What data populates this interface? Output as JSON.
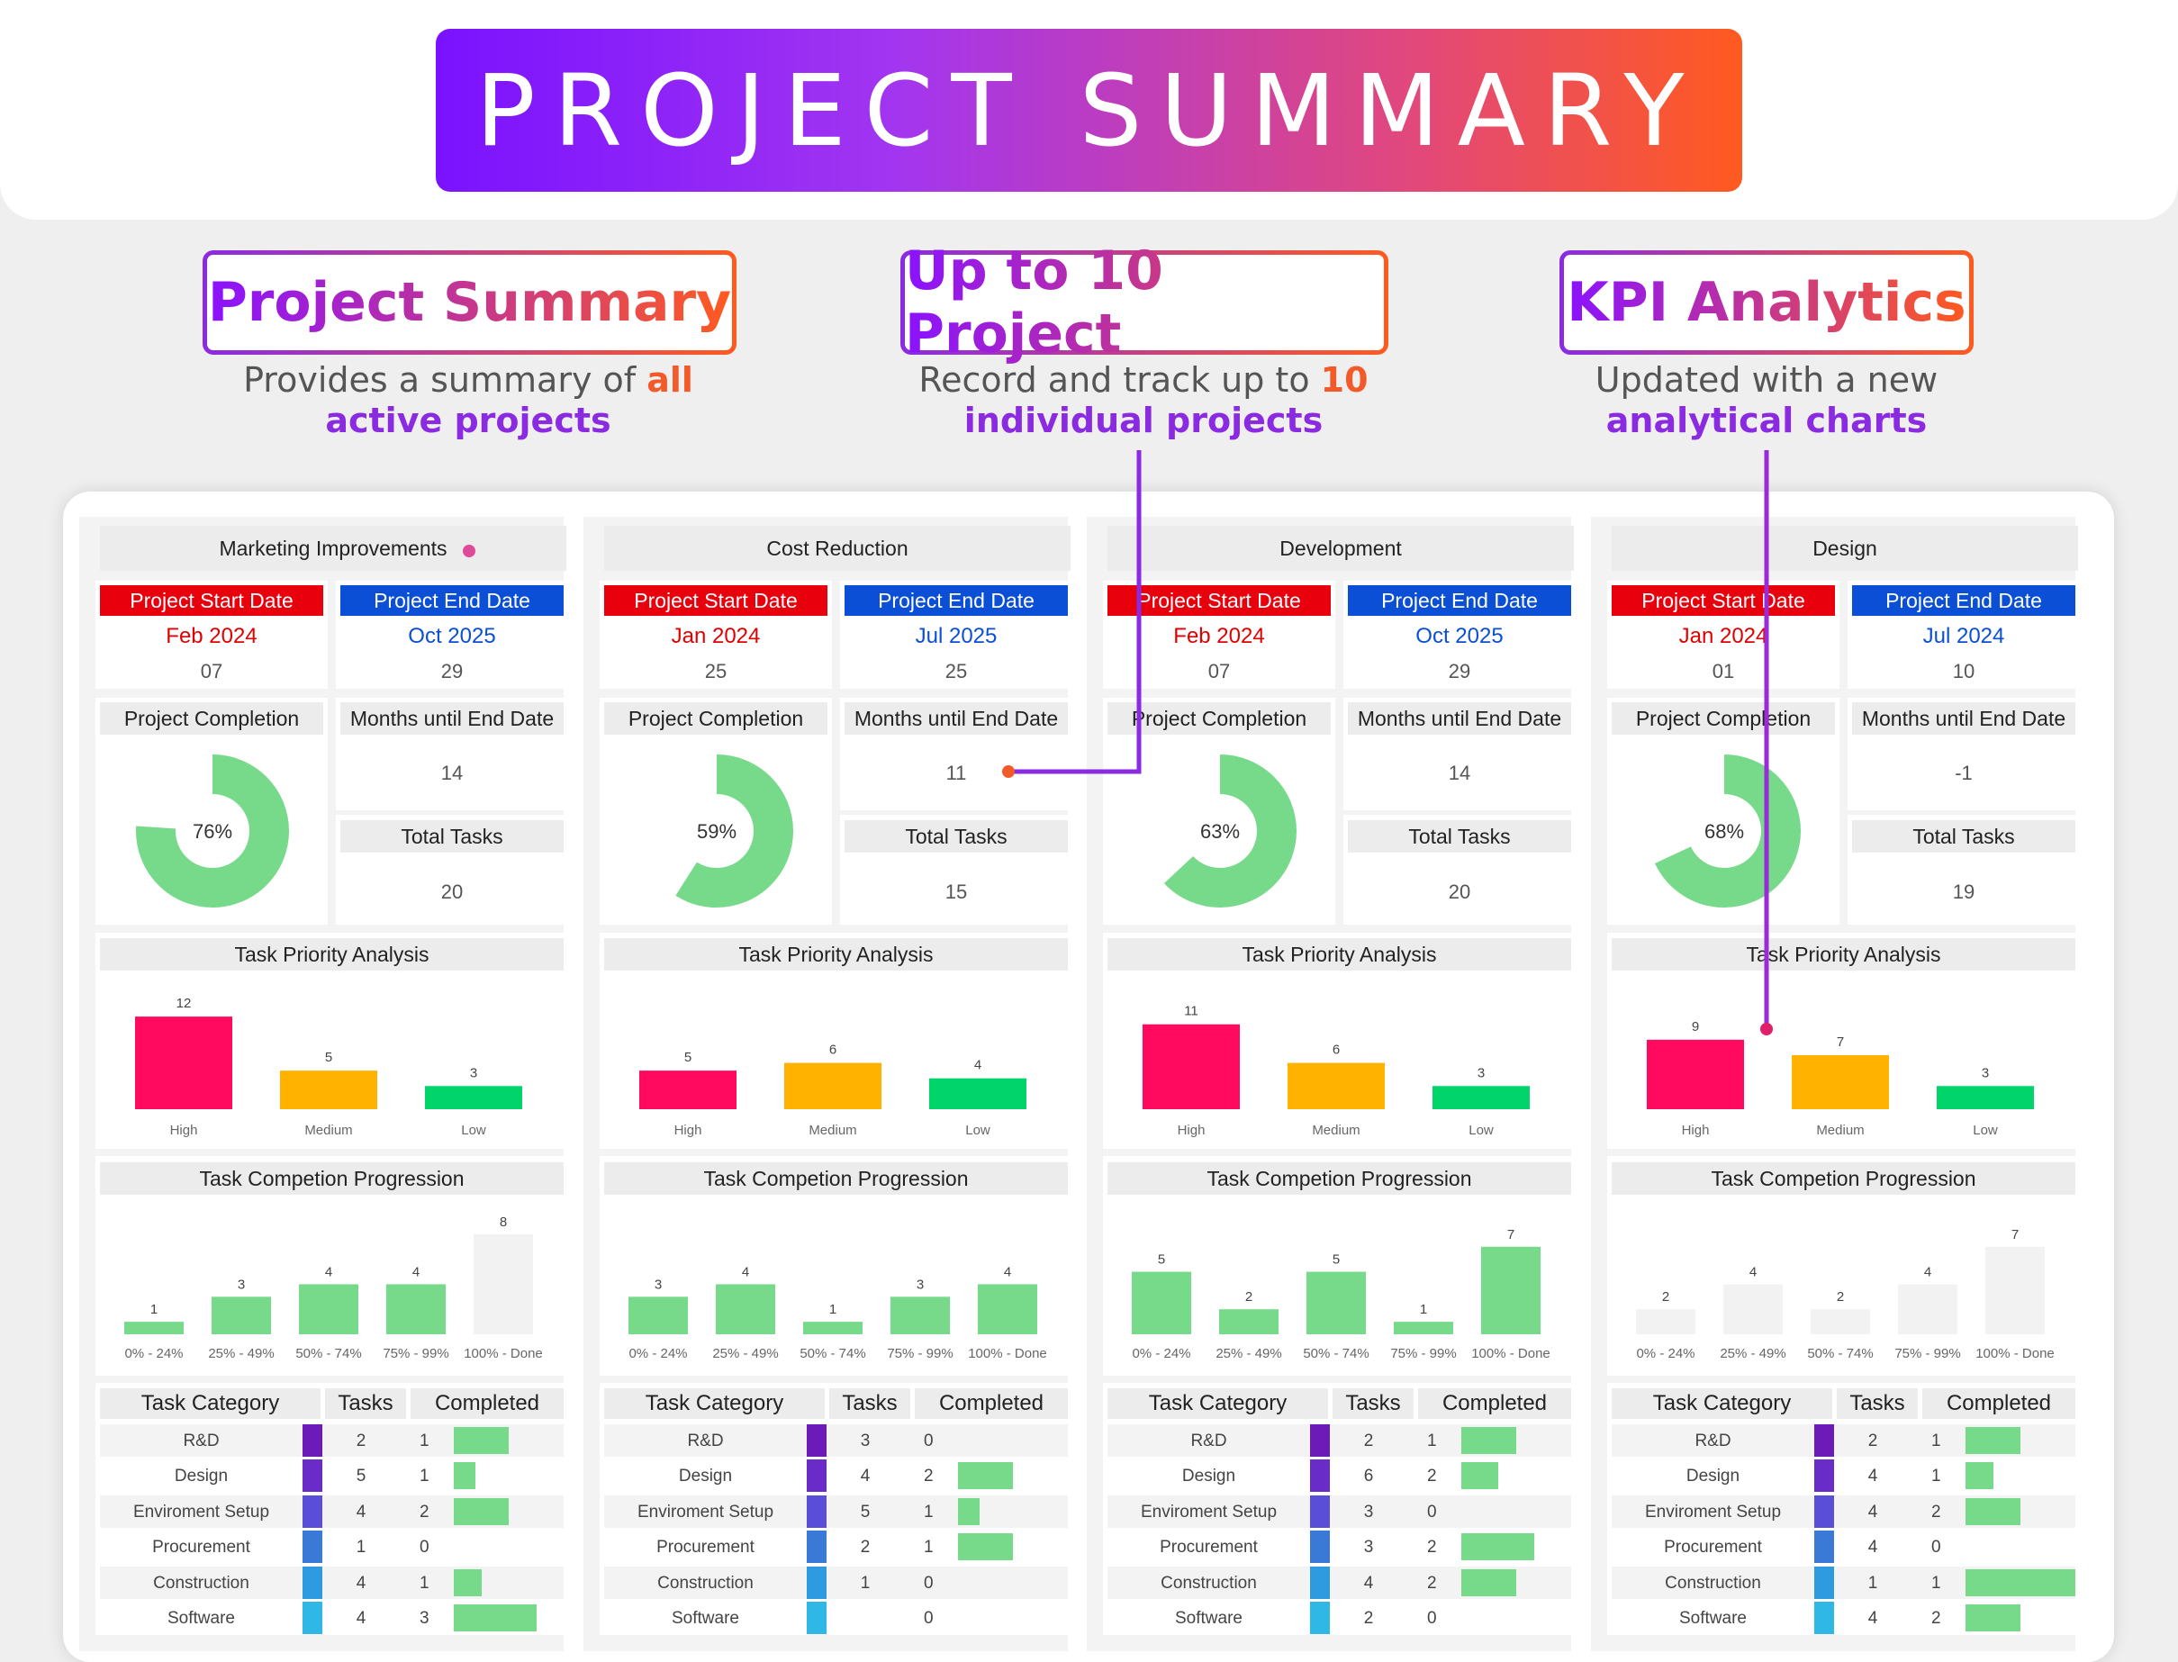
{
  "banner": {
    "title": "PROJECT SUMMARY"
  },
  "features": [
    {
      "title": "Project Summary",
      "desc_line1_a": "Provides a summary of ",
      "desc_line1_b": "all",
      "desc_line2": "active projects"
    },
    {
      "title": "Up to 10 Project",
      "desc_line1_a": "Record and track up to ",
      "desc_line1_b": "10",
      "desc_line2": "individual projects"
    },
    {
      "title": "KPI Analytics",
      "desc_line1_a": "Updated with a new",
      "desc_line1_b": "",
      "desc_line2": "analytical charts"
    }
  ],
  "labels": {
    "start": "Project Start Date",
    "end": "Project End Date",
    "completion": "Project Completion",
    "months": "Months until End Date",
    "total": "Total Tasks",
    "priority": "Task Priority Analysis",
    "progression": "Task Competion Progression",
    "cat": "Task Category",
    "tasks": "Tasks",
    "completed": "Completed"
  },
  "colors": {
    "start": "#e8000c",
    "end": "#0a4fd6",
    "start_text": "#e00000",
    "end_text": "#0a4fd6",
    "donut": "#77d98a",
    "high": "#ff0a5e",
    "medium": "#ffb300",
    "low": "#00d46a",
    "prog_fill": "#77d98a",
    "prog_empty": "#f2f2f2",
    "bar_done": "#77d98a"
  },
  "projects": [
    {
      "name": "Marketing Improvements",
      "start": "Feb 2024",
      "start_day": "07",
      "end": "Oct 2025",
      "end_day": "29",
      "completion": "76%",
      "completion_value": 76,
      "months": "14",
      "total": "20",
      "priority": {
        "categories": [
          "High",
          "Medium",
          "Low"
        ],
        "values": [
          12,
          5,
          3
        ]
      },
      "progression": {
        "categories": [
          "0% - 24%",
          "25% - 49%",
          "50% - 74%",
          "75% - 99%",
          "100% - Done"
        ],
        "values": [
          1,
          3,
          4,
          4,
          8
        ]
      },
      "rows": [
        {
          "cat": "R&D",
          "tasks": "2",
          "done": "1"
        },
        {
          "cat": "Design",
          "tasks": "5",
          "done": "1"
        },
        {
          "cat": "Enviroment Setup",
          "tasks": "4",
          "done": "2"
        },
        {
          "cat": "Procurement",
          "tasks": "1",
          "done": "0"
        },
        {
          "cat": "Construction",
          "tasks": "4",
          "done": "1"
        },
        {
          "cat": "Software",
          "tasks": "4",
          "done": "3"
        }
      ]
    },
    {
      "name": "Cost Reduction",
      "start": "Jan 2024",
      "start_day": "25",
      "end": "Jul 2025",
      "end_day": "25",
      "completion": "59%",
      "completion_value": 59,
      "months": "11",
      "total": "15",
      "priority": {
        "categories": [
          "High",
          "Medium",
          "Low"
        ],
        "values": [
          5,
          6,
          4
        ]
      },
      "progression": {
        "categories": [
          "0% - 24%",
          "25% - 49%",
          "50% - 74%",
          "75% - 99%",
          "100% - Done"
        ],
        "values": [
          3,
          4,
          1,
          3,
          4
        ]
      },
      "rows": [
        {
          "cat": "R&D",
          "tasks": "3",
          "done": "0"
        },
        {
          "cat": "Design",
          "tasks": "4",
          "done": "2"
        },
        {
          "cat": "Enviroment Setup",
          "tasks": "5",
          "done": "1"
        },
        {
          "cat": "Procurement",
          "tasks": "2",
          "done": "1"
        },
        {
          "cat": "Construction",
          "tasks": "1",
          "done": "0"
        },
        {
          "cat": "Software",
          "tasks": "",
          "done": "0"
        }
      ]
    },
    {
      "name": "Development",
      "start": "Feb 2024",
      "start_day": "07",
      "end": "Oct 2025",
      "end_day": "29",
      "completion": "63%",
      "completion_value": 63,
      "months": "14",
      "total": "20",
      "priority": {
        "categories": [
          "High",
          "Medium",
          "Low"
        ],
        "values": [
          11,
          6,
          3
        ]
      },
      "progression": {
        "categories": [
          "0% - 24%",
          "25% - 49%",
          "50% - 74%",
          "75% - 99%",
          "100% - Done"
        ],
        "values": [
          5,
          2,
          5,
          1,
          7
        ]
      },
      "rows": [
        {
          "cat": "R&D",
          "tasks": "2",
          "done": "1"
        },
        {
          "cat": "Design",
          "tasks": "6",
          "done": "2"
        },
        {
          "cat": "Enviroment Setup",
          "tasks": "3",
          "done": "0"
        },
        {
          "cat": "Procurement",
          "tasks": "3",
          "done": "2"
        },
        {
          "cat": "Construction",
          "tasks": "4",
          "done": "2"
        },
        {
          "cat": "Software",
          "tasks": "2",
          "done": "0"
        }
      ]
    },
    {
      "name": "Design",
      "start": "Jan 2024",
      "start_day": "01",
      "end": "Jul 2024",
      "end_day": "10",
      "completion": "68%",
      "completion_value": 68,
      "months": "-1",
      "total": "19",
      "priority": {
        "categories": [
          "High",
          "Medium",
          "Low"
        ],
        "values": [
          9,
          7,
          3
        ]
      },
      "progression": {
        "categories": [
          "0% - 24%",
          "25% - 49%",
          "50% - 74%",
          "75% - 99%",
          "100% - Done"
        ],
        "values": [
          2,
          4,
          2,
          4,
          7
        ]
      },
      "rows": [
        {
          "cat": "R&D",
          "tasks": "2",
          "done": "1"
        },
        {
          "cat": "Design",
          "tasks": "4",
          "done": "1"
        },
        {
          "cat": "Enviroment Setup",
          "tasks": "4",
          "done": "2"
        },
        {
          "cat": "Procurement",
          "tasks": "4",
          "done": "0"
        },
        {
          "cat": "Construction",
          "tasks": "1",
          "done": "1"
        },
        {
          "cat": "Software",
          "tasks": "4",
          "done": "2"
        }
      ]
    }
  ]
}
